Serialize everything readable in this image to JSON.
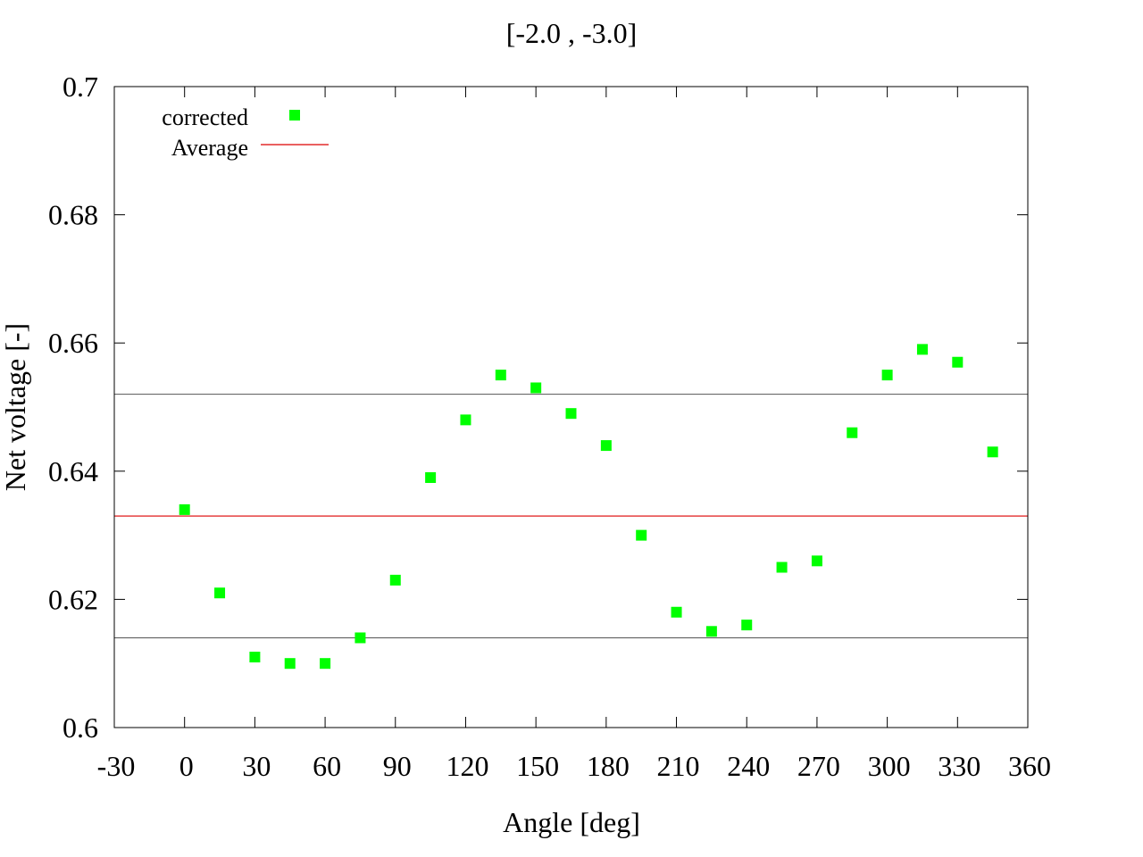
{
  "chart_data": {
    "type": "scatter",
    "title": "[-2.0 , -3.0]",
    "xlabel": "Angle [deg]",
    "ylabel": "Net voltage [-]",
    "xlim": [
      -30,
      360
    ],
    "ylim": [
      0.6,
      0.7
    ],
    "xticks": [
      -30,
      0,
      30,
      60,
      90,
      120,
      150,
      180,
      210,
      240,
      270,
      300,
      330,
      360
    ],
    "yticks": [
      0.6,
      0.62,
      0.64,
      0.66,
      0.68,
      0.7
    ],
    "xtick_labels": [
      "-30",
      "0",
      "30",
      "60",
      "90",
      "120",
      "150",
      "180",
      "210",
      "240",
      "270",
      "300",
      "330",
      "360"
    ],
    "ytick_labels": [
      "0.6",
      "0.62",
      "0.64",
      "0.66",
      "0.68",
      "0.7"
    ],
    "grid": false,
    "legend_position": "top-left",
    "series": [
      {
        "name": "corrected",
        "marker": "square",
        "color": "#00ff00",
        "x": [
          0,
          15,
          30,
          45,
          60,
          75,
          90,
          105,
          120,
          135,
          150,
          165,
          180,
          195,
          210,
          225,
          240,
          255,
          270,
          285,
          300,
          315,
          330,
          345
        ],
        "y": [
          0.634,
          0.621,
          0.611,
          0.61,
          0.61,
          0.614,
          0.623,
          0.639,
          0.648,
          0.655,
          0.653,
          0.649,
          0.644,
          0.63,
          0.618,
          0.615,
          0.616,
          0.625,
          0.626,
          0.646,
          0.655,
          0.659,
          0.657,
          0.643
        ]
      },
      {
        "name": "Average",
        "type": "hline",
        "color": "#dd0000",
        "value": 0.633
      }
    ],
    "reference_lines": [
      {
        "value": 0.652,
        "color": "#555555"
      },
      {
        "value": 0.614,
        "color": "#555555"
      }
    ]
  }
}
